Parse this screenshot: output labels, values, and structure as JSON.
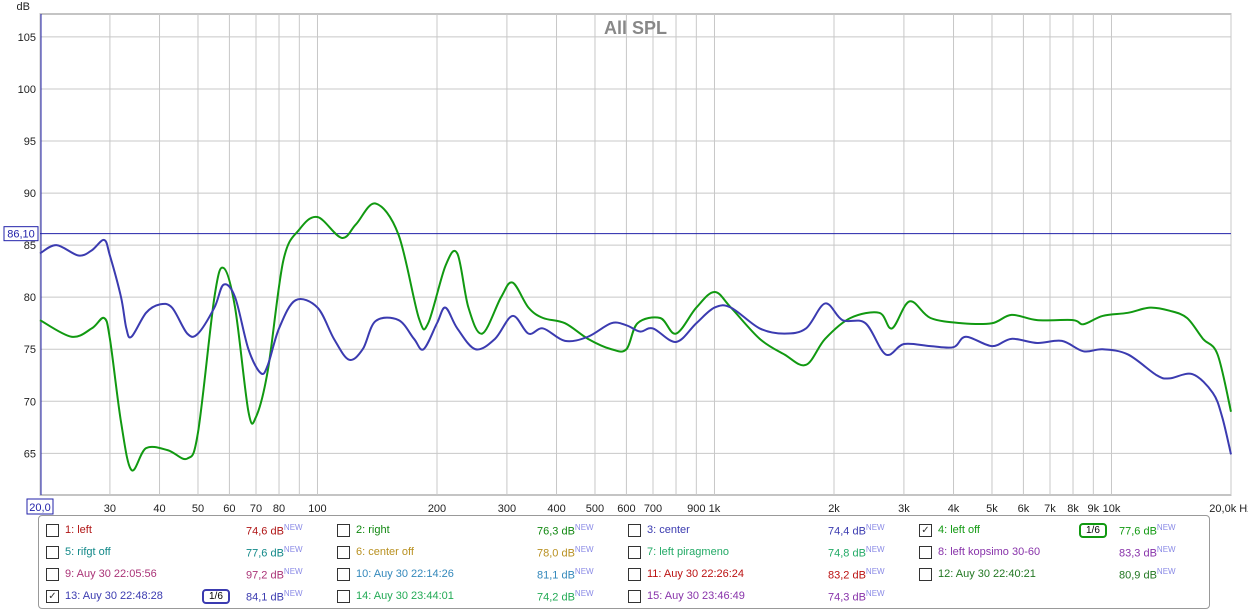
{
  "chart_data": {
    "type": "line",
    "title": "All SPL",
    "ylabel": "dB",
    "xlabel": "Hz",
    "xscale": "log",
    "xlim": [
      20,
      20000
    ],
    "ylim": [
      61,
      107.2
    ],
    "yticks": [
      65,
      70,
      75,
      80,
      85,
      90,
      95,
      100,
      105
    ],
    "xticks": [
      {
        "v": 30,
        "l": "30"
      },
      {
        "v": 40,
        "l": "40"
      },
      {
        "v": 50,
        "l": "50"
      },
      {
        "v": 60,
        "l": "60"
      },
      {
        "v": 70,
        "l": "70"
      },
      {
        "v": 80,
        "l": "80"
      },
      {
        "v": 100,
        "l": "100"
      },
      {
        "v": 200,
        "l": "200"
      },
      {
        "v": 300,
        "l": "300"
      },
      {
        "v": 400,
        "l": "400"
      },
      {
        "v": 500,
        "l": "500"
      },
      {
        "v": 600,
        "l": "600"
      },
      {
        "v": 700,
        "l": "700"
      },
      {
        "v": 900,
        "l": "900"
      },
      {
        "v": 1000,
        "l": "1k"
      },
      {
        "v": 2000,
        "l": "2k"
      },
      {
        "v": 3000,
        "l": "3k"
      },
      {
        "v": 4000,
        "l": "4k"
      },
      {
        "v": 5000,
        "l": "5k"
      },
      {
        "v": 6000,
        "l": "6k"
      },
      {
        "v": 7000,
        "l": "7k"
      },
      {
        "v": 8000,
        "l": "8k"
      },
      {
        "v": 9000,
        "l": "9k"
      },
      {
        "v": 10000,
        "l": "10k"
      },
      {
        "v": 20000,
        "l": "20,0k Hz"
      }
    ],
    "cursor": {
      "y": 86.1,
      "y_label": "86,10",
      "x_label": "20,0"
    },
    "grid": true,
    "series": [
      {
        "name": "4: left off",
        "color": "#119911",
        "points": [
          [
            20,
            77.8
          ],
          [
            24,
            76.2
          ],
          [
            27,
            77
          ],
          [
            29,
            78
          ],
          [
            30,
            76
          ],
          [
            32,
            68
          ],
          [
            34,
            63.4
          ],
          [
            37,
            65.5
          ],
          [
            42,
            65.3
          ],
          [
            47,
            64.5
          ],
          [
            50,
            67
          ],
          [
            55,
            80
          ],
          [
            58,
            82.8
          ],
          [
            62,
            79
          ],
          [
            67,
            69
          ],
          [
            70,
            68.5
          ],
          [
            75,
            73
          ],
          [
            82,
            83.5
          ],
          [
            90,
            86.5
          ],
          [
            100,
            87.7
          ],
          [
            115,
            85.7
          ],
          [
            125,
            87
          ],
          [
            140,
            89
          ],
          [
            160,
            86
          ],
          [
            180,
            78
          ],
          [
            190,
            77.5
          ],
          [
            210,
            83
          ],
          [
            225,
            84.2
          ],
          [
            240,
            79
          ],
          [
            260,
            76.5
          ],
          [
            290,
            80
          ],
          [
            310,
            81.4
          ],
          [
            340,
            79
          ],
          [
            370,
            78
          ],
          [
            420,
            77.5
          ],
          [
            480,
            76
          ],
          [
            550,
            75
          ],
          [
            600,
            75
          ],
          [
            640,
            77.5
          ],
          [
            730,
            78
          ],
          [
            800,
            76.5
          ],
          [
            900,
            79
          ],
          [
            1000,
            80.5
          ],
          [
            1100,
            79
          ],
          [
            1300,
            76
          ],
          [
            1500,
            74.5
          ],
          [
            1700,
            73.5
          ],
          [
            1900,
            76
          ],
          [
            2200,
            78
          ],
          [
            2600,
            78.5
          ],
          [
            2800,
            77
          ],
          [
            3100,
            79.6
          ],
          [
            3500,
            78
          ],
          [
            4200,
            77.5
          ],
          [
            5000,
            77.5
          ],
          [
            5600,
            78.3
          ],
          [
            6500,
            77.8
          ],
          [
            8000,
            77.8
          ],
          [
            8500,
            77.4
          ],
          [
            9500,
            78.2
          ],
          [
            11000,
            78.5
          ],
          [
            12500,
            79
          ],
          [
            14000,
            78.7
          ],
          [
            15500,
            78
          ],
          [
            17000,
            76
          ],
          [
            18500,
            74.5
          ],
          [
            20000,
            69
          ]
        ]
      },
      {
        "name": "13: Auy 30 22:48:28",
        "color": "#3b3bb0",
        "points": [
          [
            20,
            84.2
          ],
          [
            22,
            85
          ],
          [
            25,
            84
          ],
          [
            27,
            84.5
          ],
          [
            29,
            85.5
          ],
          [
            30,
            84
          ],
          [
            32,
            80
          ],
          [
            33,
            77
          ],
          [
            34,
            76.2
          ],
          [
            37,
            78.5
          ],
          [
            40,
            79.3
          ],
          [
            43,
            79
          ],
          [
            47,
            76.5
          ],
          [
            50,
            76.5
          ],
          [
            55,
            79
          ],
          [
            58,
            81.2
          ],
          [
            62,
            80
          ],
          [
            67,
            75
          ],
          [
            72,
            72.7
          ],
          [
            75,
            73.5
          ],
          [
            80,
            77
          ],
          [
            88,
            79.7
          ],
          [
            100,
            79
          ],
          [
            110,
            76
          ],
          [
            120,
            74
          ],
          [
            130,
            75
          ],
          [
            140,
            77.7
          ],
          [
            160,
            77.8
          ],
          [
            175,
            76
          ],
          [
            185,
            75
          ],
          [
            200,
            77.5
          ],
          [
            210,
            79
          ],
          [
            225,
            77
          ],
          [
            250,
            75
          ],
          [
            280,
            76
          ],
          [
            310,
            78.2
          ],
          [
            340,
            76.5
          ],
          [
            370,
            77
          ],
          [
            420,
            75.8
          ],
          [
            480,
            76.2
          ],
          [
            550,
            77.5
          ],
          [
            600,
            77.3
          ],
          [
            650,
            76.7
          ],
          [
            700,
            77
          ],
          [
            800,
            75.7
          ],
          [
            900,
            77.5
          ],
          [
            1000,
            79
          ],
          [
            1100,
            79
          ],
          [
            1300,
            77
          ],
          [
            1500,
            76.5
          ],
          [
            1700,
            77
          ],
          [
            1900,
            79.4
          ],
          [
            2100,
            77.8
          ],
          [
            2400,
            77.5
          ],
          [
            2700,
            74.5
          ],
          [
            3000,
            75.5
          ],
          [
            3500,
            75.3
          ],
          [
            4000,
            75.2
          ],
          [
            4300,
            76.2
          ],
          [
            5000,
            75.3
          ],
          [
            5600,
            76
          ],
          [
            6500,
            75.6
          ],
          [
            7500,
            75.8
          ],
          [
            8500,
            74.8
          ],
          [
            9500,
            75
          ],
          [
            11000,
            74.5
          ],
          [
            13000,
            72.5
          ],
          [
            14000,
            72.2
          ],
          [
            16000,
            72.6
          ],
          [
            18000,
            70.8
          ],
          [
            19000,
            68.5
          ],
          [
            20000,
            64.9
          ]
        ]
      }
    ]
  },
  "legend": [
    {
      "label": "1: left",
      "value": "74,6 dB",
      "new": "NEW",
      "color": "#b01515",
      "checked": false
    },
    {
      "label": "2: right",
      "value": "76,3 dB",
      "new": "NEW",
      "color": "#118811",
      "checked": false
    },
    {
      "label": "3: center",
      "value": "74,4 dB",
      "new": "NEW",
      "color": "#3b3bb0",
      "checked": false
    },
    {
      "label": "4: left off",
      "value": "77,6 dB",
      "new": "NEW",
      "color": "#119911",
      "checked": true,
      "smoothing": "1/6"
    },
    {
      "label": "5: rifgt off",
      "value": "77,6 dB",
      "new": "NEW",
      "color": "#118888",
      "checked": false
    },
    {
      "label": "6: center off",
      "value": "78,0 dB",
      "new": "NEW",
      "color": "#b89020",
      "checked": false
    },
    {
      "label": "7: left piragmeno",
      "value": "74,8 dB",
      "new": "NEW",
      "color": "#22aa66",
      "checked": false
    },
    {
      "label": "8: left kopsimo 30-60",
      "value": "83,3 dB",
      "new": "NEW",
      "color": "#8833aa",
      "checked": false
    },
    {
      "label": "9: Auy 30 22:05:56",
      "value": "97,2 dB",
      "new": "NEW",
      "color": "#aa3377",
      "checked": false
    },
    {
      "label": "10: Auy 30 22:14:26",
      "value": "81,1 dB",
      "new": "NEW",
      "color": "#3388bb",
      "checked": false
    },
    {
      "label": "11: Auy 30 22:26:24",
      "value": "83,2 dB",
      "new": "NEW",
      "color": "#bb1111",
      "checked": false
    },
    {
      "label": "12: Auy 30 22:40:21",
      "value": "80,9 dB",
      "new": "NEW",
      "color": "#227722",
      "checked": false
    },
    {
      "label": "13: Auy 30 22:48:28",
      "value": "84,1 dB",
      "new": "NEW",
      "color": "#3b3bb0",
      "checked": true,
      "smoothing": "1/6"
    },
    {
      "label": "14: Auy 30 23:44:01",
      "value": "74,2 dB",
      "new": "NEW",
      "color": "#22aa55",
      "checked": false
    },
    {
      "label": "15: Auy 30 23:46:49",
      "value": "74,3 dB",
      "new": "NEW",
      "color": "#8833aa",
      "checked": false
    }
  ]
}
